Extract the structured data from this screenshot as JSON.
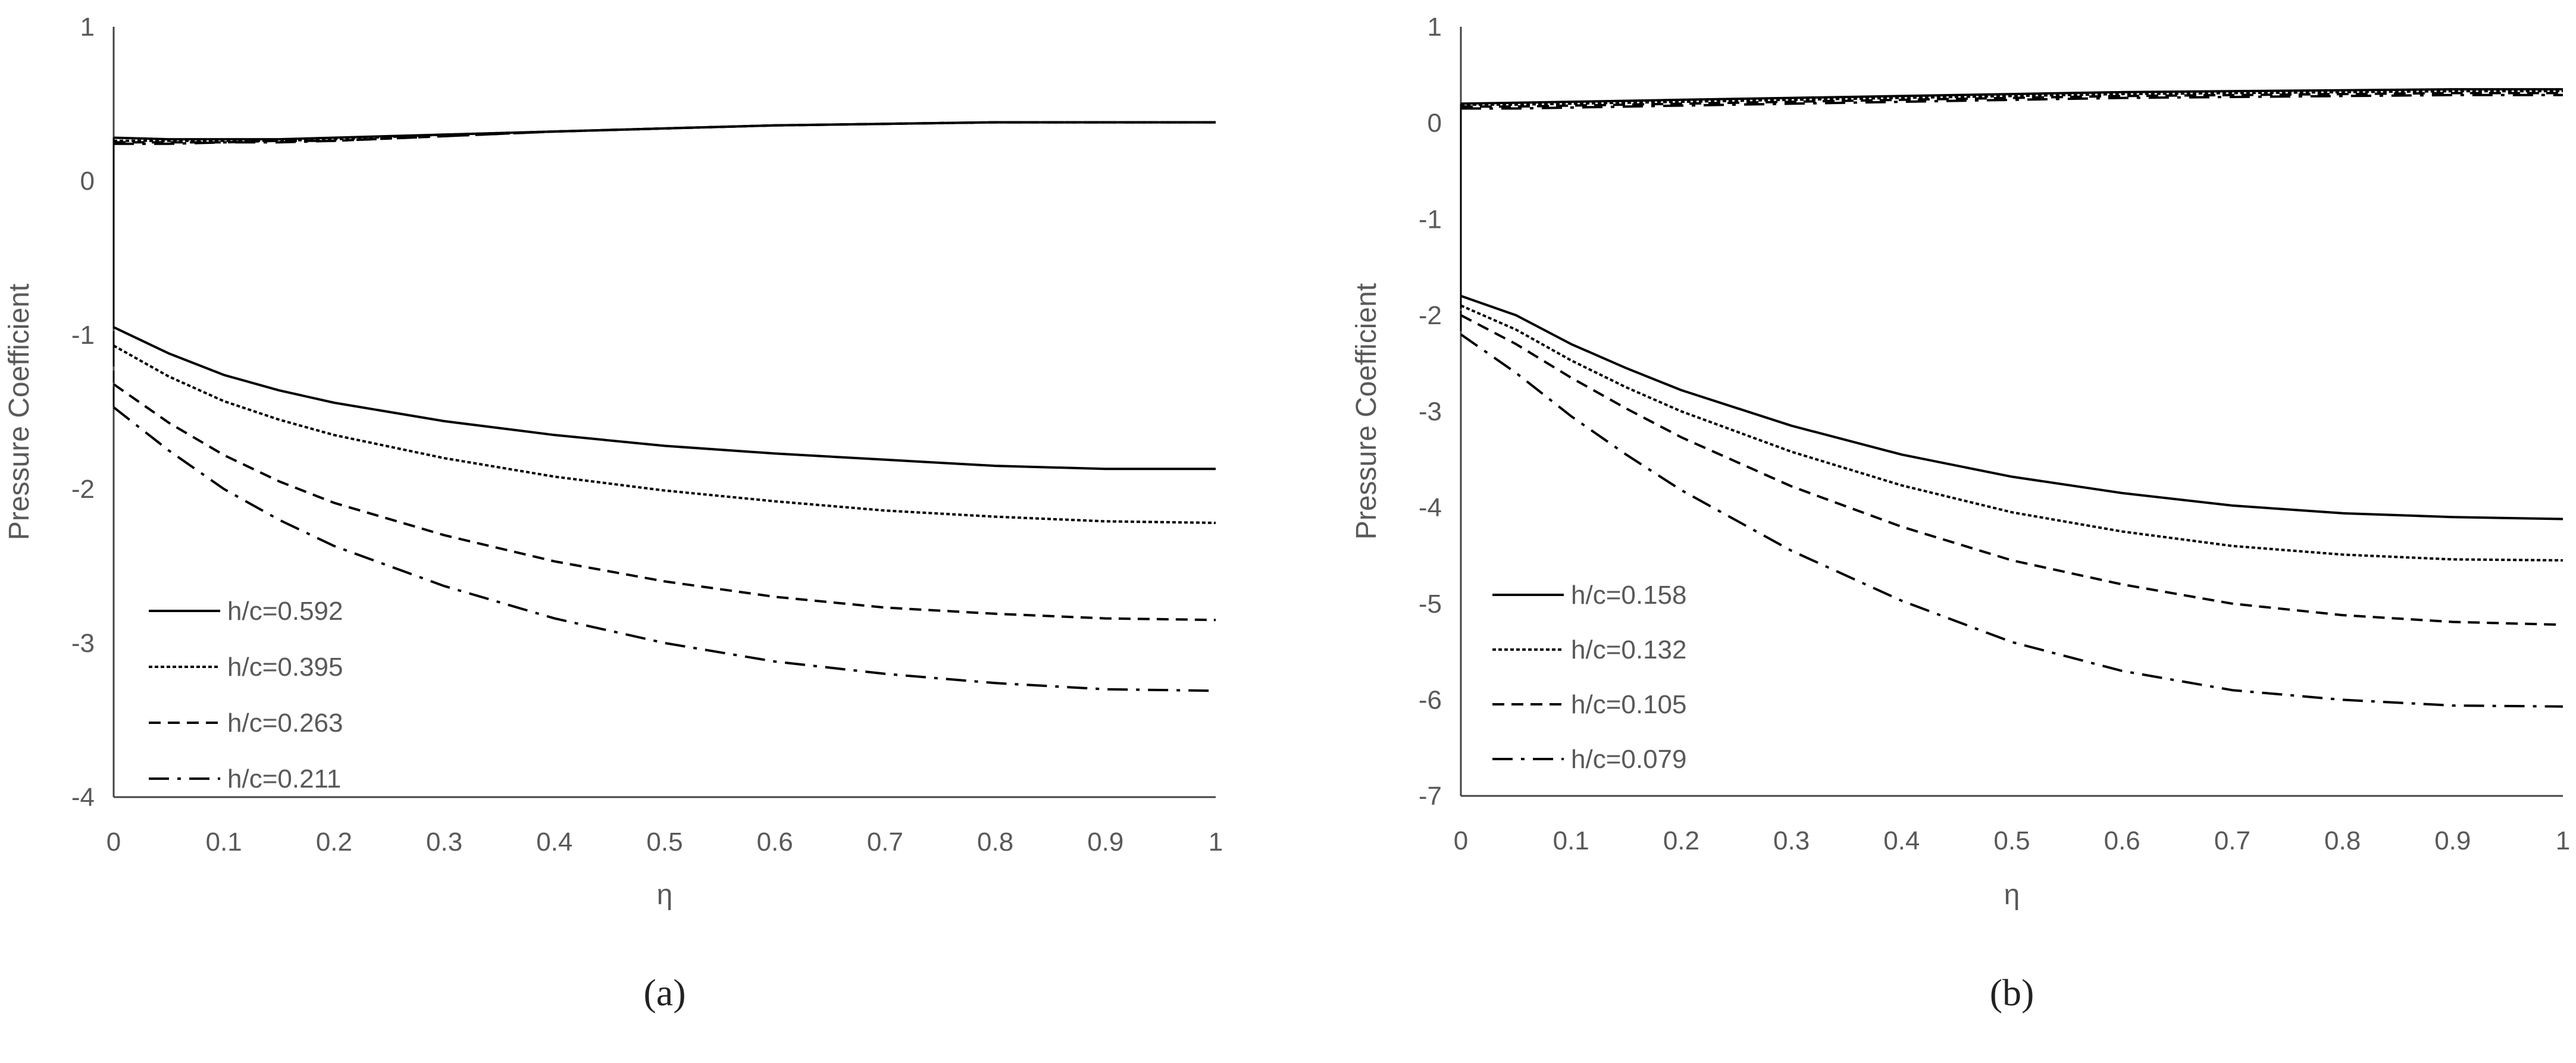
{
  "chart_data": [
    {
      "type": "line",
      "panel_label": "(a)",
      "xlabel": "η",
      "ylabel": "Pressure Coefficient",
      "xlim": [
        0,
        1
      ],
      "ylim": [
        -4,
        1
      ],
      "x_ticks": [
        0,
        0.1,
        0.2,
        0.3,
        0.4,
        0.5,
        0.6,
        0.7,
        0.8,
        0.9,
        1
      ],
      "x_tick_labels": [
        "0",
        "0.1",
        "0.2",
        "0.3",
        "0.4",
        "0.5",
        "0.6",
        "0.7",
        "0.8",
        "0.9",
        "1"
      ],
      "y_ticks": [
        -4,
        -3,
        -2,
        -1,
        0,
        1
      ],
      "y_tick_labels": [
        "-4",
        "-3",
        "-2",
        "-1",
        "0",
        "1"
      ],
      "grid": false,
      "legend_position": "bottom-left",
      "x": [
        0,
        0.05,
        0.1,
        0.15,
        0.2,
        0.3,
        0.4,
        0.5,
        0.6,
        0.7,
        0.8,
        0.9,
        1.0
      ],
      "series": [
        {
          "name": "h/c=0.592",
          "dash": "solid",
          "upper": [
            0.28,
            0.27,
            0.27,
            0.27,
            0.28,
            0.3,
            0.32,
            0.34,
            0.36,
            0.37,
            0.38,
            0.38,
            0.38
          ],
          "lower": [
            -0.95,
            -1.12,
            -1.26,
            -1.36,
            -1.44,
            -1.56,
            -1.65,
            -1.72,
            -1.77,
            -1.81,
            -1.85,
            -1.87,
            -1.87
          ]
        },
        {
          "name": "h/c=0.395",
          "dash": "dotted",
          "upper": [
            0.26,
            0.26,
            0.26,
            0.26,
            0.27,
            0.3,
            0.32,
            0.34,
            0.36,
            0.37,
            0.38,
            0.38,
            0.38
          ],
          "lower": [
            -1.07,
            -1.27,
            -1.43,
            -1.55,
            -1.65,
            -1.8,
            -1.92,
            -2.01,
            -2.08,
            -2.14,
            -2.18,
            -2.21,
            -2.22
          ]
        },
        {
          "name": "h/c=0.263",
          "dash": "dashed",
          "upper": [
            0.25,
            0.25,
            0.25,
            0.26,
            0.26,
            0.29,
            0.32,
            0.34,
            0.36,
            0.37,
            0.38,
            0.38,
            0.38
          ],
          "lower": [
            -1.32,
            -1.57,
            -1.78,
            -1.95,
            -2.09,
            -2.3,
            -2.47,
            -2.6,
            -2.7,
            -2.77,
            -2.81,
            -2.84,
            -2.85
          ]
        },
        {
          "name": "h/c=0.211",
          "dash": "dashdot",
          "upper": [
            0.24,
            0.24,
            0.25,
            0.25,
            0.26,
            0.29,
            0.32,
            0.34,
            0.36,
            0.37,
            0.38,
            0.38,
            0.38
          ],
          "lower": [
            -1.47,
            -1.75,
            -2.0,
            -2.2,
            -2.37,
            -2.63,
            -2.84,
            -3.0,
            -3.12,
            -3.2,
            -3.26,
            -3.3,
            -3.31
          ]
        }
      ]
    },
    {
      "type": "line",
      "panel_label": "(b)",
      "xlabel": "η",
      "ylabel": "Pressure Coefficient",
      "xlim": [
        0,
        1
      ],
      "ylim": [
        -7,
        1
      ],
      "x_ticks": [
        0,
        0.1,
        0.2,
        0.3,
        0.4,
        0.5,
        0.6,
        0.7,
        0.8,
        0.9,
        1
      ],
      "x_tick_labels": [
        "0",
        "0.1",
        "0.2",
        "0.3",
        "0.4",
        "0.5",
        "0.6",
        "0.7",
        "0.8",
        "0.9",
        "1"
      ],
      "y_ticks": [
        -7,
        -6,
        -5,
        -4,
        -3,
        -2,
        -1,
        0,
        1
      ],
      "y_tick_labels": [
        "-7",
        "-6",
        "-5",
        "-4",
        "-3",
        "-2",
        "-1",
        "0",
        "1"
      ],
      "grid": false,
      "legend_position": "bottom-left",
      "x": [
        0,
        0.05,
        0.1,
        0.15,
        0.2,
        0.3,
        0.4,
        0.5,
        0.6,
        0.7,
        0.8,
        0.9,
        1.0
      ],
      "series": [
        {
          "name": "h/c=0.158",
          "dash": "solid",
          "upper": [
            0.2,
            0.21,
            0.22,
            0.23,
            0.24,
            0.26,
            0.28,
            0.3,
            0.32,
            0.33,
            0.34,
            0.35,
            0.35
          ],
          "lower": [
            -1.8,
            -2.0,
            -2.3,
            -2.55,
            -2.78,
            -3.15,
            -3.45,
            -3.68,
            -3.85,
            -3.98,
            -4.06,
            -4.1,
            -4.12
          ]
        },
        {
          "name": "h/c=0.132",
          "dash": "dotted",
          "upper": [
            0.19,
            0.19,
            0.2,
            0.21,
            0.22,
            0.24,
            0.26,
            0.28,
            0.3,
            0.31,
            0.32,
            0.33,
            0.33
          ],
          "lower": [
            -1.9,
            -2.15,
            -2.47,
            -2.75,
            -3.0,
            -3.42,
            -3.77,
            -4.05,
            -4.25,
            -4.4,
            -4.49,
            -4.54,
            -4.55
          ]
        },
        {
          "name": "h/c=0.105",
          "dash": "dashed",
          "upper": [
            0.17,
            0.17,
            0.18,
            0.19,
            0.2,
            0.22,
            0.24,
            0.26,
            0.28,
            0.29,
            0.3,
            0.31,
            0.31
          ],
          "lower": [
            -2.0,
            -2.3,
            -2.65,
            -2.97,
            -3.27,
            -3.78,
            -4.2,
            -4.55,
            -4.8,
            -5.0,
            -5.12,
            -5.19,
            -5.22
          ]
        },
        {
          "name": "h/c=0.079",
          "dash": "dashdot",
          "upper": [
            0.15,
            0.15,
            0.16,
            0.17,
            0.18,
            0.2,
            0.22,
            0.24,
            0.26,
            0.27,
            0.28,
            0.29,
            0.29
          ],
          "lower": [
            -2.2,
            -2.6,
            -3.05,
            -3.45,
            -3.82,
            -4.45,
            -4.97,
            -5.4,
            -5.7,
            -5.9,
            -6.0,
            -6.06,
            -6.07
          ]
        }
      ]
    }
  ]
}
